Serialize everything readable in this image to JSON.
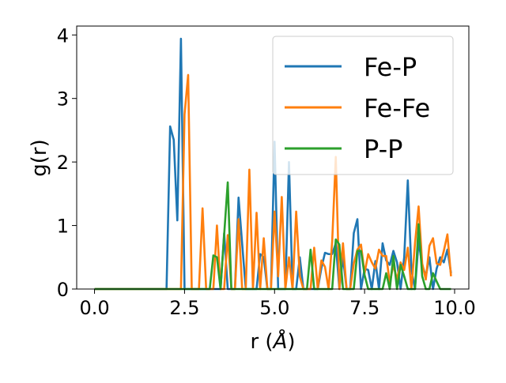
{
  "chart_data": {
    "type": "line",
    "title": "",
    "xlabel": "r (",
    "xlabel_unit": "Å",
    "xlabel_close": ")",
    "ylabel": "g(r)",
    "xlim": [
      -0.495,
      10.395
    ],
    "ylim": [
      0,
      4.14
    ],
    "xticks": [
      0.0,
      2.5,
      5.0,
      7.5,
      10.0
    ],
    "xtick_labels": [
      "0.0",
      "2.5",
      "5.0",
      "7.5",
      "10.0"
    ],
    "yticks": [
      0,
      1,
      2,
      3,
      4
    ],
    "ytick_labels": [
      "0",
      "1",
      "2",
      "3",
      "4"
    ],
    "grid": false,
    "legend_position": "top-right",
    "x": [
      0.0,
      0.1,
      0.2,
      0.3,
      0.4,
      0.5,
      0.6,
      0.7,
      0.8,
      0.9,
      1.0,
      1.1,
      1.2,
      1.3,
      1.4,
      1.5,
      1.6,
      1.7,
      1.8,
      1.9,
      2.0,
      2.1,
      2.2,
      2.3,
      2.4,
      2.5,
      2.6,
      2.7,
      2.8,
      2.9,
      3.0,
      3.1,
      3.2,
      3.3,
      3.4,
      3.5,
      3.6,
      3.7,
      3.8,
      3.9,
      4.0,
      4.1,
      4.2,
      4.3,
      4.4,
      4.5,
      4.6,
      4.7,
      4.8,
      4.9,
      5.0,
      5.1,
      5.2,
      5.3,
      5.4,
      5.5,
      5.6,
      5.7,
      5.8,
      5.9,
      6.0,
      6.1,
      6.2,
      6.3,
      6.4,
      6.5,
      6.6,
      6.7,
      6.8,
      6.9,
      7.0,
      7.1,
      7.2,
      7.3,
      7.4,
      7.5,
      7.6,
      7.7,
      7.8,
      7.9,
      8.0,
      8.1,
      8.2,
      8.3,
      8.4,
      8.5,
      8.6,
      8.7,
      8.8,
      8.9,
      9.0,
      9.1,
      9.2,
      9.3,
      9.4,
      9.5,
      9.6,
      9.7,
      9.8,
      9.9
    ],
    "series": [
      {
        "name": "Fe-P",
        "color": "#1f77b4",
        "values": [
          0,
          0,
          0,
          0,
          0,
          0,
          0,
          0,
          0,
          0,
          0,
          0,
          0,
          0,
          0,
          0,
          0,
          0,
          0,
          0,
          0,
          2.56,
          2.35,
          1.08,
          3.94,
          0,
          0,
          0,
          0,
          0,
          0,
          0,
          0,
          0,
          0,
          0,
          0.88,
          0,
          0,
          0,
          1.44,
          0.71,
          0,
          0,
          0,
          0,
          0.55,
          0.5,
          0,
          0,
          2.32,
          0,
          0,
          0,
          2.0,
          0,
          0,
          0.5,
          0,
          0,
          0,
          0,
          0,
          0.33,
          0.57,
          0.55,
          0.55,
          0.72,
          0,
          0.5,
          0,
          0,
          0.88,
          1.1,
          0,
          0.32,
          0.3,
          0,
          0.44,
          0,
          0.72,
          0.45,
          0.38,
          0.6,
          0.42,
          0,
          0.5,
          1.71,
          0.3,
          0,
          0.75,
          0.38,
          0.2,
          0.5,
          0,
          0.32,
          0.5,
          0.42,
          0.62,
          0.25
        ]
      },
      {
        "name": "Fe-Fe",
        "color": "#ff7f0e",
        "values": [
          0,
          0,
          0,
          0,
          0,
          0,
          0,
          0,
          0,
          0,
          0,
          0,
          0,
          0,
          0,
          0,
          0,
          0,
          0,
          0,
          0,
          0,
          0,
          0,
          0,
          2.75,
          3.37,
          0,
          0,
          0,
          1.27,
          0,
          0,
          0,
          1.0,
          0,
          0,
          0.85,
          0,
          0,
          1.1,
          0,
          0,
          1.88,
          0,
          1.2,
          0,
          0.8,
          0,
          0,
          1.22,
          0.2,
          1.45,
          0,
          0.5,
          0,
          1.22,
          0.2,
          0,
          0,
          0,
          0.65,
          0,
          0.45,
          0.35,
          0,
          0.75,
          2.08,
          0,
          0.72,
          0,
          0,
          0.4,
          0.62,
          0.7,
          0.25,
          0.55,
          0.42,
          0.32,
          0.62,
          0.52,
          0.52,
          0.1,
          0.38,
          0.15,
          0.42,
          0.3,
          0.65,
          0,
          0.72,
          1.3,
          0.4,
          0.15,
          0.68,
          0.8,
          0.4,
          0.38,
          0.6,
          0.86,
          0.2
        ]
      },
      {
        "name": "P-P",
        "color": "#2ca02c",
        "values": [
          0,
          0,
          0,
          0,
          0,
          0,
          0,
          0,
          0,
          0,
          0,
          0,
          0,
          0,
          0,
          0,
          0,
          0,
          0,
          0,
          0,
          0,
          0,
          0,
          0,
          0,
          0,
          0,
          0,
          0,
          0,
          0,
          0,
          0.53,
          0.5,
          0,
          0.85,
          1.68,
          0,
          0,
          0,
          0,
          0,
          0,
          0,
          0,
          0,
          0,
          0,
          0,
          0,
          0,
          0,
          0,
          0,
          0,
          0,
          0,
          0,
          0,
          0.62,
          0,
          0,
          0,
          0,
          0,
          0,
          0.78,
          0.7,
          0,
          0,
          0,
          0,
          0.6,
          0.6,
          0.22,
          0,
          0,
          0,
          0,
          0,
          0.25,
          0,
          0.52,
          0,
          0.38,
          0.2,
          0,
          0,
          0,
          1.02,
          0.2,
          0,
          0,
          0.25,
          0.12,
          0,
          0,
          0,
          0
        ]
      }
    ]
  }
}
